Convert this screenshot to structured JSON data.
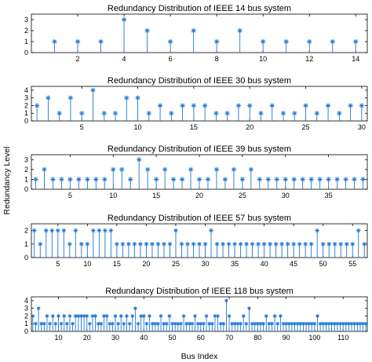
{
  "figure": {
    "ylabel": "Redundancy Level",
    "xlabel": "Bus Index",
    "colors": {
      "stem": "#1f77d4",
      "axis": "#000000",
      "background": "#ffffff"
    }
  },
  "chart_data": [
    {
      "type": "stem",
      "title": "Redundancy Distribution of IEEE 14 bus system",
      "xlim": [
        0,
        14.5
      ],
      "ylim": [
        0,
        3.5
      ],
      "xticks": [
        2,
        4,
        6,
        8,
        10,
        12,
        14
      ],
      "yticks": [
        0,
        1,
        2,
        3
      ],
      "values": [
        1,
        1,
        1,
        3,
        2,
        1,
        2,
        1,
        2,
        1,
        1,
        1,
        1,
        1
      ]
    },
    {
      "type": "stem",
      "title": "Redundancy Distribution of IEEE 30 bus system",
      "xlim": [
        0.5,
        30.5
      ],
      "ylim": [
        0,
        4.5
      ],
      "xticks": [
        5,
        10,
        15,
        20,
        25,
        30
      ],
      "yticks": [
        0,
        1,
        2,
        3,
        4
      ],
      "values": [
        2,
        3,
        1,
        3,
        1,
        4,
        1,
        1,
        3,
        3,
        1,
        2,
        1,
        2,
        2,
        2,
        1,
        1,
        2,
        2,
        1,
        2,
        1,
        1,
        2,
        1,
        2,
        1,
        2,
        2
      ]
    },
    {
      "type": "stem",
      "title": "Redundancy Distribution of IEEE 39 bus system",
      "xlim": [
        0.5,
        39.5
      ],
      "ylim": [
        0,
        3.5
      ],
      "xticks": [
        5,
        10,
        15,
        20,
        25,
        30,
        35
      ],
      "yticks": [
        0,
        1,
        2,
        3
      ],
      "values": [
        1,
        2,
        1,
        1,
        1,
        1,
        1,
        1,
        1,
        2,
        2,
        1,
        3,
        2,
        1,
        2,
        1,
        1,
        2,
        1,
        1,
        2,
        1,
        2,
        1,
        2,
        1,
        1,
        1,
        1,
        1,
        1,
        1,
        1,
        1,
        1,
        1,
        1,
        1
      ]
    },
    {
      "type": "stem",
      "title": "Redundancy Distribution of IEEE 57 bus system",
      "xlim": [
        0.5,
        57.5
      ],
      "ylim": [
        0,
        2.5
      ],
      "xticks": [
        5,
        10,
        15,
        20,
        25,
        30,
        35,
        40,
        45,
        50,
        55
      ],
      "yticks": [
        0,
        1,
        2
      ],
      "values": [
        2,
        1,
        2,
        2,
        2,
        2,
        1,
        2,
        1,
        1,
        2,
        2,
        2,
        2,
        1,
        1,
        1,
        1,
        1,
        1,
        1,
        1,
        1,
        1,
        2,
        1,
        1,
        1,
        1,
        1,
        2,
        1,
        1,
        1,
        1,
        1,
        1,
        1,
        1,
        1,
        1,
        1,
        1,
        1,
        1,
        1,
        1,
        1,
        2,
        1,
        1,
        1,
        1,
        1,
        1,
        2,
        1
      ]
    },
    {
      "type": "stem",
      "title": "Redundancy Distribution of IEEE 118 bus system",
      "xlim": [
        0.5,
        118.5
      ],
      "ylim": [
        0,
        4.5
      ],
      "xticks": [
        10,
        20,
        30,
        40,
        50,
        60,
        70,
        80,
        90,
        100,
        110
      ],
      "yticks": [
        0,
        1,
        2,
        3,
        4
      ],
      "values": [
        2,
        1,
        3,
        1,
        1,
        2,
        1,
        2,
        1,
        2,
        1,
        2,
        1,
        2,
        1,
        2,
        2,
        2,
        2,
        2,
        1,
        2,
        2,
        1,
        1,
        2,
        2,
        1,
        1,
        2,
        1,
        2,
        1,
        2,
        1,
        2,
        3,
        1,
        2,
        2,
        1,
        2,
        1,
        1,
        1,
        2,
        1,
        1,
        2,
        1,
        1,
        1,
        1,
        2,
        1,
        1,
        1,
        2,
        1,
        1,
        1,
        2,
        1,
        1,
        2,
        2,
        1,
        1,
        4,
        2,
        1,
        1,
        1,
        1,
        2,
        1,
        3,
        1,
        1,
        1,
        1,
        1,
        2,
        1,
        1,
        2,
        1,
        2,
        1,
        1,
        1,
        1,
        1,
        1,
        1,
        1,
        1,
        1,
        1,
        1,
        2,
        1,
        1,
        1,
        1,
        1,
        1,
        1,
        1,
        1,
        1,
        1,
        1,
        1,
        1,
        1,
        1,
        1
      ]
    }
  ]
}
